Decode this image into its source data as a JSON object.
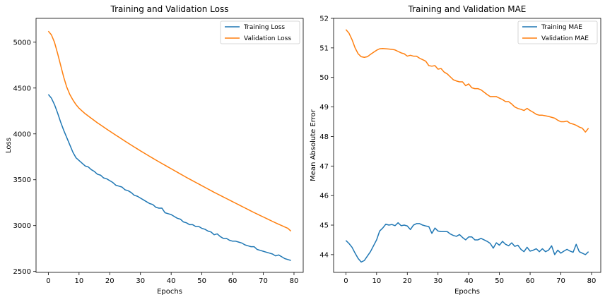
{
  "chart_data": [
    {
      "type": "line",
      "title": "Training and Validation Loss",
      "xlabel": "Epochs",
      "ylabel": "Loss",
      "xlim": [
        -4,
        83
      ],
      "ylim": [
        2490,
        5260
      ],
      "xticks": [
        0,
        10,
        20,
        30,
        40,
        50,
        60,
        70,
        80
      ],
      "yticks": [
        2500,
        3000,
        3500,
        4000,
        4500,
        5000
      ],
      "legend": "top-right",
      "grid": false,
      "x": [
        0,
        1,
        2,
        3,
        4,
        5,
        6,
        7,
        8,
        9,
        10,
        11,
        12,
        13,
        14,
        15,
        16,
        17,
        18,
        19,
        20,
        21,
        22,
        23,
        24,
        25,
        26,
        27,
        28,
        29,
        30,
        31,
        32,
        33,
        34,
        35,
        36,
        37,
        38,
        39,
        40,
        41,
        42,
        43,
        44,
        45,
        46,
        47,
        48,
        49,
        50,
        51,
        52,
        53,
        54,
        55,
        56,
        57,
        58,
        59,
        60,
        61,
        62,
        63,
        64,
        65,
        66,
        67,
        68,
        69,
        70,
        71,
        72,
        73,
        74,
        75,
        76,
        77,
        78,
        79
      ],
      "series": [
        {
          "name": "Training Loss",
          "color": "#1f77b4",
          "values": [
            4430,
            4390,
            4320,
            4230,
            4130,
            4040,
            3960,
            3880,
            3800,
            3740,
            3710,
            3680,
            3650,
            3640,
            3610,
            3590,
            3560,
            3550,
            3520,
            3510,
            3490,
            3470,
            3440,
            3430,
            3420,
            3390,
            3380,
            3360,
            3330,
            3320,
            3300,
            3280,
            3260,
            3240,
            3230,
            3200,
            3190,
            3190,
            3140,
            3130,
            3120,
            3100,
            3080,
            3070,
            3040,
            3030,
            3010,
            3010,
            2990,
            2990,
            2970,
            2960,
            2940,
            2930,
            2900,
            2910,
            2880,
            2860,
            2860,
            2840,
            2830,
            2830,
            2820,
            2810,
            2790,
            2780,
            2770,
            2770,
            2740,
            2730,
            2720,
            2710,
            2700,
            2690,
            2670,
            2680,
            2660,
            2640,
            2630,
            2620
          ]
        },
        {
          "name": "Validation Loss",
          "color": "#ff7f0e",
          "values": [
            5120,
            5080,
            5000,
            4880,
            4750,
            4620,
            4510,
            4430,
            4370,
            4320,
            4280,
            4250,
            4220,
            4195,
            4170,
            4145,
            4120,
            4098,
            4075,
            4052,
            4030,
            4008,
            3986,
            3964,
            3942,
            3920,
            3899,
            3878,
            3857,
            3836,
            3815,
            3795,
            3775,
            3755,
            3735,
            3715,
            3696,
            3677,
            3658,
            3639,
            3620,
            3601,
            3582,
            3563,
            3544,
            3525,
            3507,
            3489,
            3471,
            3453,
            3435,
            3417,
            3399,
            3381,
            3363,
            3346,
            3329,
            3312,
            3295,
            3278,
            3261,
            3244,
            3227,
            3210,
            3193,
            3176,
            3159,
            3142,
            3126,
            3110,
            3094,
            3078,
            3062,
            3046,
            3030,
            3015,
            3000,
            2985,
            2970,
            2940
          ]
        }
      ]
    },
    {
      "type": "line",
      "title": "Training and Validation MAE",
      "xlabel": "Epochs",
      "ylabel": "Mean Absolute Error",
      "xlim": [
        -4,
        83
      ],
      "ylim": [
        43.4,
        52.0
      ],
      "xticks": [
        0,
        10,
        20,
        30,
        40,
        50,
        60,
        70,
        80
      ],
      "yticks": [
        44,
        45,
        46,
        47,
        48,
        49,
        50,
        51,
        52
      ],
      "legend": "top-right",
      "grid": false,
      "x": [
        0,
        1,
        2,
        3,
        4,
        5,
        6,
        7,
        8,
        9,
        10,
        11,
        12,
        13,
        14,
        15,
        16,
        17,
        18,
        19,
        20,
        21,
        22,
        23,
        24,
        25,
        26,
        27,
        28,
        29,
        30,
        31,
        32,
        33,
        34,
        35,
        36,
        37,
        38,
        39,
        40,
        41,
        42,
        43,
        44,
        45,
        46,
        47,
        48,
        49,
        50,
        51,
        52,
        53,
        54,
        55,
        56,
        57,
        58,
        59,
        60,
        61,
        62,
        63,
        64,
        65,
        66,
        67,
        68,
        69,
        70,
        71,
        72,
        73,
        74,
        75,
        76,
        77,
        78,
        79
      ],
      "series": [
        {
          "name": "Training MAE",
          "color": "#1f77b4",
          "values": [
            44.48,
            44.38,
            44.25,
            44.05,
            43.87,
            43.75,
            43.8,
            43.95,
            44.1,
            44.3,
            44.5,
            44.8,
            44.9,
            45.03,
            45.0,
            45.02,
            44.98,
            45.08,
            44.98,
            45.0,
            44.97,
            44.85,
            45.0,
            45.05,
            45.05,
            45.0,
            44.97,
            44.95,
            44.72,
            44.9,
            44.8,
            44.78,
            44.78,
            44.78,
            44.7,
            44.65,
            44.62,
            44.68,
            44.58,
            44.5,
            44.6,
            44.6,
            44.5,
            44.5,
            44.55,
            44.5,
            44.45,
            44.38,
            44.22,
            44.4,
            44.32,
            44.45,
            44.35,
            44.3,
            44.4,
            44.28,
            44.32,
            44.18,
            44.1,
            44.25,
            44.12,
            44.15,
            44.2,
            44.1,
            44.2,
            44.1,
            44.15,
            44.3,
            44.0,
            44.15,
            44.05,
            44.12,
            44.18,
            44.12,
            44.08,
            44.35,
            44.1,
            44.05,
            44.0,
            44.1
          ]
        },
        {
          "name": "Validation MAE",
          "color": "#ff7f0e",
          "values": [
            51.62,
            51.5,
            51.28,
            51.0,
            50.8,
            50.7,
            50.68,
            50.7,
            50.78,
            50.85,
            50.92,
            50.97,
            50.98,
            50.97,
            50.96,
            50.95,
            50.93,
            50.88,
            50.83,
            50.8,
            50.72,
            50.75,
            50.72,
            50.72,
            50.65,
            50.6,
            50.55,
            50.4,
            50.38,
            50.4,
            50.28,
            50.3,
            50.18,
            50.12,
            50.02,
            49.92,
            49.88,
            49.85,
            49.85,
            49.72,
            49.78,
            49.65,
            49.62,
            49.62,
            49.58,
            49.5,
            49.42,
            49.35,
            49.35,
            49.35,
            49.3,
            49.25,
            49.18,
            49.18,
            49.1,
            49.0,
            48.95,
            48.92,
            48.88,
            48.95,
            48.88,
            48.82,
            48.75,
            48.72,
            48.72,
            48.7,
            48.68,
            48.65,
            48.62,
            48.55,
            48.5,
            48.5,
            48.52,
            48.45,
            48.42,
            48.38,
            48.32,
            48.28,
            48.15,
            48.28
          ]
        }
      ]
    }
  ]
}
